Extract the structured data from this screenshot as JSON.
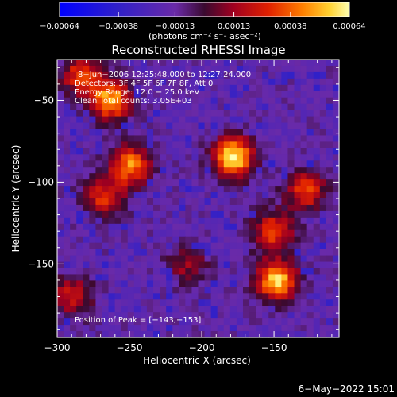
{
  "chart_data": {
    "type": "heatmap",
    "title": "Reconstructed RHESSI Image",
    "xlabel": "Heliocentric X (arcsec)",
    "ylabel": "Heliocentric Y (arcsec)",
    "xlim": [
      -300,
      -105
    ],
    "ylim": [
      -195,
      -25
    ],
    "x_ticks": [
      -300,
      -250,
      -200,
      -150
    ],
    "x_tick_labels": [
      "−300",
      "−250",
      "−200",
      "−150"
    ],
    "y_ticks": [
      -50,
      -100,
      -150
    ],
    "y_tick_labels": [
      "−50",
      "−100",
      "−150"
    ],
    "colorbar": {
      "ticks": [
        -0.00064,
        -0.00038,
        -0.00013,
        0.00013,
        0.00038,
        0.00064
      ],
      "tick_labels": [
        "−0.00064",
        "−0.00038",
        "−0.00013",
        "0.00013",
        "0.00038",
        "0.00064"
      ],
      "unit_label": "(photons cm⁻² s⁻¹ asec⁻²)",
      "range": [
        -0.00064,
        0.00064
      ]
    },
    "info_lines": [
      "8−Jun−2006 12:25:48.000 to 12:27:24.000",
      "Detectors: 3F 4F 5F 6F 7F 8F, Att 0",
      "Energy Range: 12.0 − 25.0 keV",
      "Clean    Total counts: 3.05E+03"
    ],
    "peak_label": "Position of Peak = [−143,−153]",
    "peak": [
      -143,
      -153
    ],
    "sources": [
      {
        "x": -178,
        "y": -85,
        "strength": 1.0
      },
      {
        "x": -148,
        "y": -160,
        "strength": 0.95
      },
      {
        "x": -263,
        "y": -50,
        "strength": 0.85
      },
      {
        "x": -283,
        "y": -35,
        "strength": 0.6
      },
      {
        "x": -250,
        "y": -90,
        "strength": 0.75
      },
      {
        "x": -268,
        "y": -110,
        "strength": 0.55
      },
      {
        "x": -128,
        "y": -105,
        "strength": 0.6
      },
      {
        "x": -150,
        "y": -130,
        "strength": 0.6
      },
      {
        "x": -290,
        "y": -170,
        "strength": 0.5
      },
      {
        "x": -210,
        "y": -150,
        "strength": 0.35
      }
    ]
  },
  "footer": {
    "timestamp": "6−May−2022 15:01"
  }
}
